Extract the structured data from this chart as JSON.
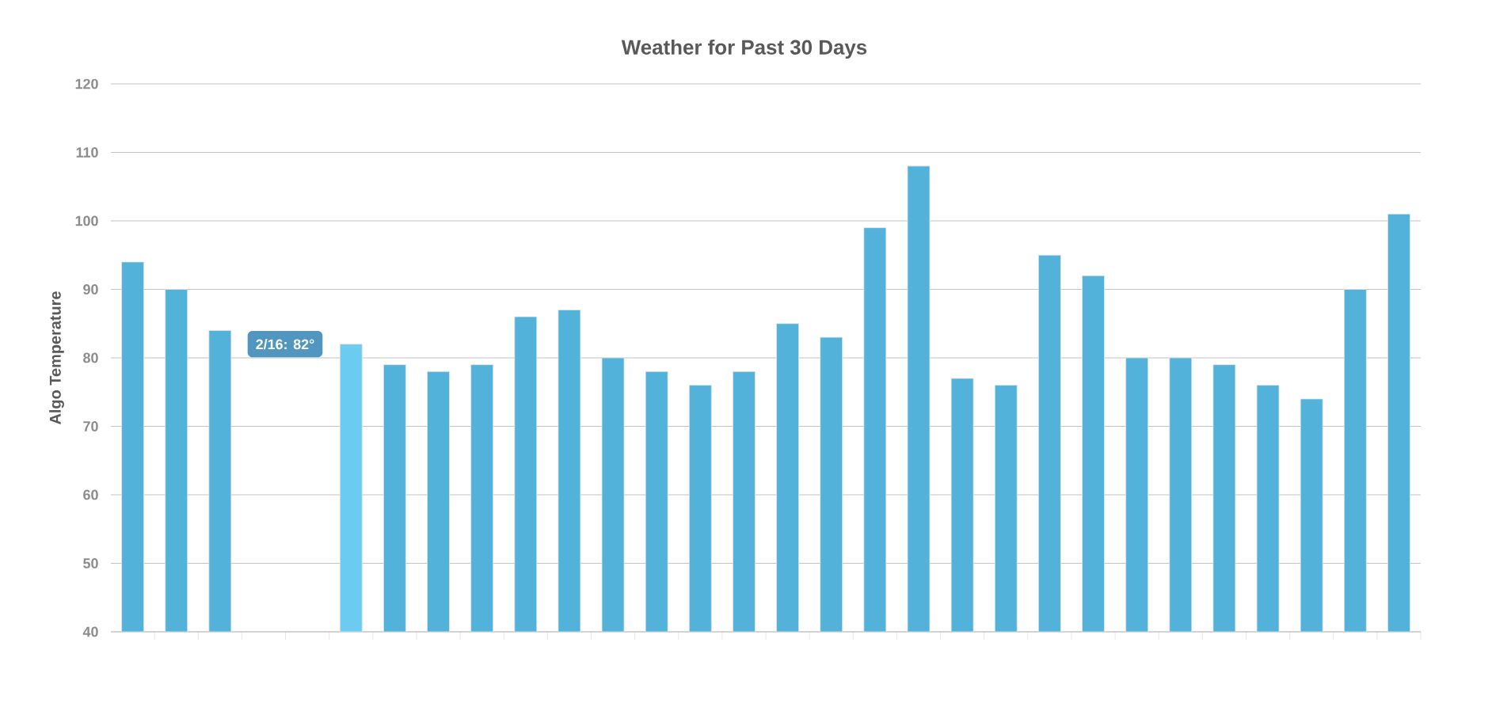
{
  "chart_data": {
    "type": "bar",
    "title": "Weather for Past 30 Days",
    "ylabel": "Algo Temperature",
    "categories": [
      null,
      null,
      null,
      null,
      null,
      null,
      null,
      null,
      null,
      null,
      null,
      null,
      null,
      null,
      null,
      null,
      null,
      null,
      null,
      null,
      null,
      null,
      null,
      null,
      null,
      null,
      null,
      null,
      null,
      null
    ],
    "values": [
      94,
      90,
      84,
      null,
      null,
      82,
      79,
      78,
      79,
      86,
      87,
      80,
      78,
      76,
      78,
      85,
      83,
      99,
      108,
      77,
      76,
      95,
      92,
      80,
      80,
      79,
      76,
      74,
      90,
      101
    ],
    "colors": [
      "#52b2d9",
      "#52b2d9",
      "#52b2d9",
      "#52b2d9",
      "#52b2d9",
      "#6ccbf0",
      "#52b2d9",
      "#52b2d9",
      "#52b2d9",
      "#52b2d9",
      "#52b2d9",
      "#52b2d9",
      "#52b2d9",
      "#52b2d9",
      "#52b2d9",
      "#52b2d9",
      "#52b2d9",
      "#52b2d9",
      "#52b2d9",
      "#52b2d9",
      "#52b2d9",
      "#52b2d9",
      "#52b2d9",
      "#52b2d9",
      "#52b2d9",
      "#52b2d9",
      "#52b2d9",
      "#52b2d9",
      "#52b2d9",
      "#52b2d9"
    ],
    "annotations": [
      "2/16: 82°"
    ],
    "ylim": [
      40,
      120
    ],
    "yticks": [
      40,
      50,
      60,
      70,
      80,
      90,
      100,
      110,
      120
    ],
    "grid": "y",
    "tick_labels": "y"
  }
}
